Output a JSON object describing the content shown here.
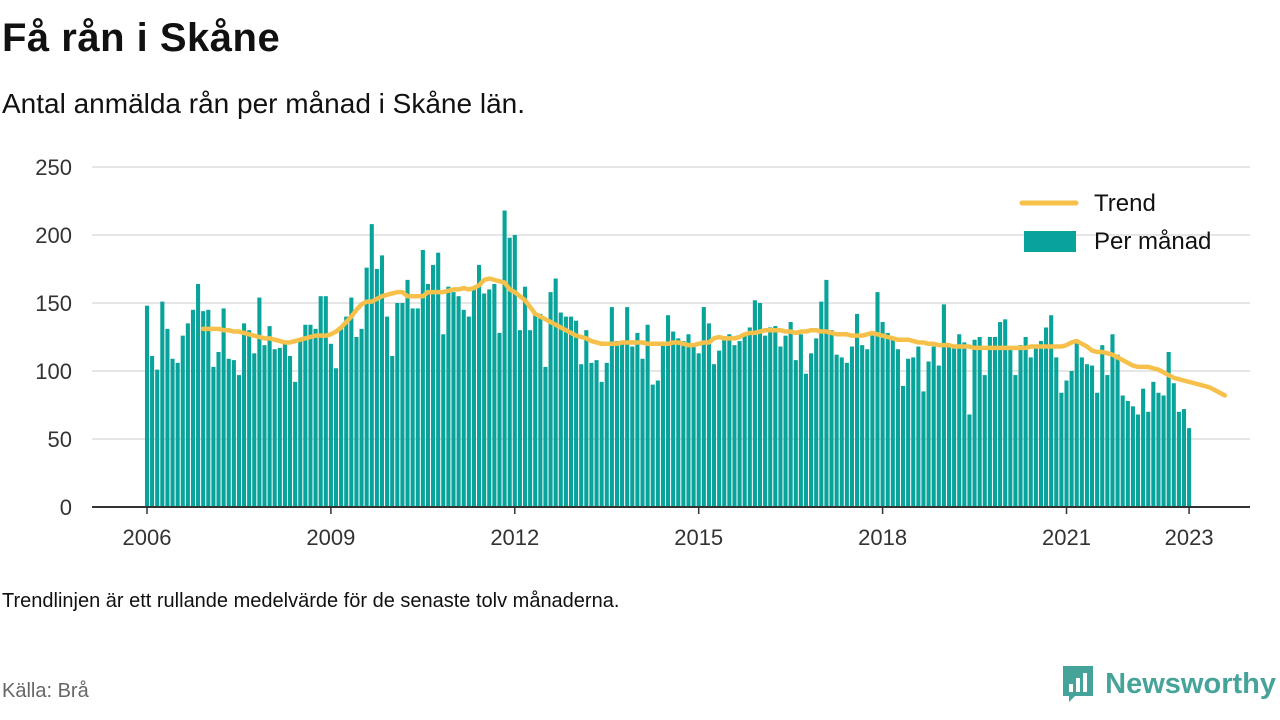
{
  "header": {
    "title": "Få rån i Skåne",
    "subtitle": "Antal anmälda rån per månad i Skåne län."
  },
  "footer": {
    "note": "Trendlinjen är ett rullande medelvärde för de senaste tolv månaderna.",
    "source": "Källa: Brå",
    "brand": "Newsworthy",
    "brand_icon": "newsworthy-logo-icon"
  },
  "colors": {
    "bars": "#08a39a",
    "trend": "#f6c04a",
    "grid": "#dddddd",
    "axis": "#333333",
    "brand": "#45a39a"
  },
  "chart_data": {
    "type": "bar",
    "start_month": "2006-01",
    "ylim": [
      0,
      250
    ],
    "yticks": [
      0,
      50,
      100,
      150,
      200,
      250
    ],
    "xticks": [
      "2006",
      "2009",
      "2012",
      "2015",
      "2018",
      "2021",
      "2023"
    ],
    "grid": true,
    "legend_position": "top-right",
    "series": [
      {
        "name": "Per månad",
        "type": "bar",
        "values": [
          148,
          111,
          101,
          151,
          131,
          109,
          106,
          126,
          135,
          145,
          164,
          144,
          145,
          103,
          114,
          146,
          109,
          108,
          97,
          135,
          130,
          113,
          154,
          119,
          133,
          116,
          117,
          120,
          111,
          92,
          122,
          134,
          134,
          131,
          155,
          155,
          120,
          102,
          131,
          140,
          154,
          125,
          131,
          176,
          208,
          175,
          185,
          140,
          111,
          150,
          150,
          167,
          146,
          146,
          189,
          164,
          178,
          187,
          127,
          162,
          158,
          155,
          145,
          140,
          160,
          178,
          157,
          160,
          164,
          128,
          218,
          198,
          200,
          130,
          162,
          130,
          141,
          142,
          103,
          158,
          168,
          143,
          140,
          140,
          137,
          105,
          130,
          106,
          108,
          92,
          106,
          147,
          122,
          120,
          147,
          118,
          128,
          109,
          134,
          90,
          93,
          120,
          141,
          129,
          124,
          122,
          127,
          120,
          113,
          147,
          135,
          105,
          115,
          123,
          127,
          119,
          122,
          128,
          132,
          152,
          150,
          126,
          132,
          133,
          118,
          126,
          136,
          108,
          127,
          98,
          113,
          124,
          151,
          167,
          130,
          112,
          110,
          106,
          118,
          142,
          119,
          116,
          126,
          158,
          136,
          128,
          123,
          116,
          89,
          109,
          110,
          118,
          85,
          107,
          118,
          104,
          149,
          119,
          117,
          127,
          121,
          68,
          123,
          125,
          97,
          125,
          125,
          136,
          138,
          118,
          97,
          119,
          125,
          110,
          118,
          122,
          132,
          141,
          110,
          84,
          93,
          100,
          122,
          110,
          105,
          104,
          84,
          119,
          97,
          127,
          112,
          82,
          78,
          74,
          68,
          87,
          70,
          92,
          84,
          82,
          114,
          91,
          70,
          72,
          58
        ],
        "color": "#08a39a"
      },
      {
        "name": "Trend",
        "type": "line",
        "start_month": "2006-12",
        "values": [
          131,
          131,
          131,
          131,
          130,
          130,
          129,
          129,
          128,
          127,
          126,
          125,
          124,
          124,
          123,
          122,
          121,
          121,
          122,
          123,
          124,
          125,
          126,
          126,
          126,
          127,
          129,
          132,
          136,
          140,
          145,
          149,
          151,
          151,
          153,
          155,
          156,
          157,
          158,
          158,
          155,
          155,
          155,
          155,
          158,
          158,
          158,
          158,
          159,
          160,
          160,
          161,
          160,
          161,
          163,
          167,
          168,
          167,
          166,
          165,
          160,
          158,
          155,
          152,
          147,
          142,
          140,
          138,
          136,
          134,
          132,
          130,
          128,
          126,
          125,
          124,
          122,
          121,
          120,
          120,
          120,
          120,
          121,
          121,
          121,
          121,
          121,
          120,
          120,
          120,
          120,
          120,
          121,
          121,
          120,
          119,
          119,
          120,
          121,
          121,
          124,
          125,
          124,
          124,
          124,
          125,
          127,
          128,
          128,
          129,
          130,
          130,
          130,
          130,
          129,
          129,
          128,
          129,
          129,
          130,
          130,
          129,
          129,
          128,
          127,
          127,
          127,
          126,
          126,
          126,
          127,
          128,
          127,
          126,
          125,
          124,
          123,
          123,
          123,
          122,
          121,
          121,
          120,
          120,
          119,
          119,
          119,
          118,
          118,
          118,
          118,
          117,
          117,
          117,
          117,
          117,
          117,
          117,
          117,
          117,
          117,
          117,
          118,
          118,
          118,
          118,
          118,
          118,
          118,
          119,
          121,
          122,
          120,
          118,
          115,
          114,
          114,
          113,
          112,
          110,
          108,
          106,
          104,
          103,
          103,
          103,
          102,
          101,
          99,
          97,
          95,
          94,
          93,
          92,
          91,
          90,
          89,
          88,
          86,
          84,
          82
        ]
      }
    ],
    "legend": [
      "Trend",
      "Per månad"
    ]
  }
}
